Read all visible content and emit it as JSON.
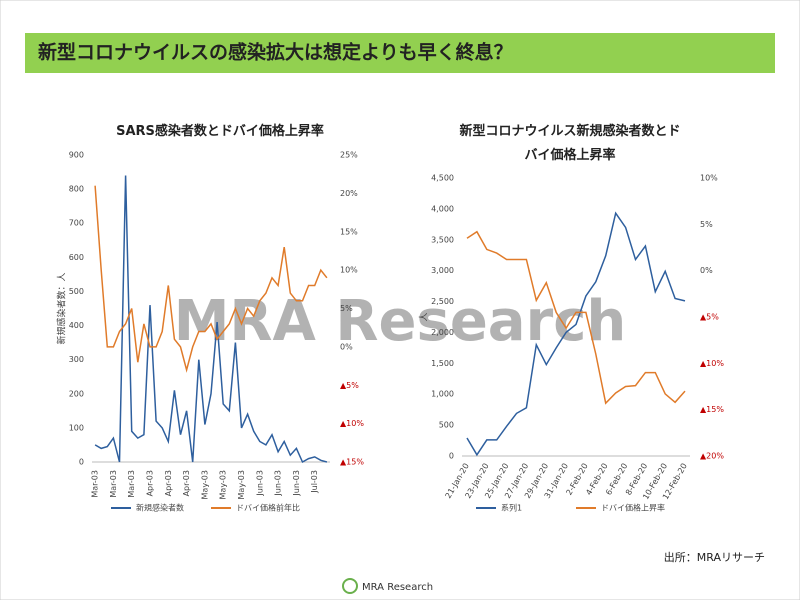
{
  "header": {
    "title": "新型コロナウイルスの感染拡大は想定よりも早く終息？"
  },
  "watermark": "MRA Research",
  "source": "出所：MRAリサーチ",
  "footer": "MRA Research",
  "chart_data": [
    {
      "type": "line",
      "title": "SARS感染者数とドバイ価格上昇率",
      "y_label": "新規感染者数：人",
      "categories": [
        "Mar-03",
        null,
        null,
        "Mar-03",
        null,
        null,
        "Mar-03",
        null,
        null,
        "Apr-03",
        null,
        null,
        "Apr-03",
        null,
        null,
        "Apr-03",
        null,
        null,
        "May-03",
        null,
        null,
        "May-03",
        null,
        null,
        "May-03",
        null,
        null,
        "Jun-03",
        null,
        null,
        "Jun-03",
        null,
        null,
        "Jun-03",
        null,
        null,
        "Jul-03",
        null,
        null
      ],
      "series": [
        {
          "name": "新規感染者数",
          "color": "#2e5f9e",
          "values": [
            50,
            40,
            45,
            70,
            0,
            840,
            90,
            70,
            80,
            460,
            120,
            100,
            60,
            210,
            80,
            150,
            0,
            300,
            110,
            200,
            410,
            170,
            150,
            350,
            100,
            140,
            90,
            60,
            50,
            80,
            30,
            60,
            20,
            40,
            0,
            10,
            15,
            5,
            0
          ]
        },
        {
          "name": "ドバイ価格前年比",
          "color": "#e07b2a",
          "axis": "y2",
          "values": [
            21,
            10,
            0,
            0,
            2,
            3,
            5,
            -2,
            3,
            0,
            0,
            2,
            8,
            1,
            0,
            -3,
            0,
            2,
            2,
            3,
            1,
            2,
            3,
            5,
            3,
            5,
            4,
            6,
            7,
            9,
            8,
            13,
            7,
            6,
            6,
            8,
            8,
            10,
            9
          ]
        }
      ],
      "ylim": [
        0,
        900
      ],
      "yticks": [
        0,
        100,
        200,
        300,
        400,
        500,
        600,
        700,
        800,
        900
      ],
      "y2lim": [
        -15,
        25
      ],
      "y2ticks": [
        {
          "value": -15,
          "label": "▲15%"
        },
        {
          "value": -10,
          "label": "▲10%"
        },
        {
          "value": -5,
          "label": "▲5%"
        },
        {
          "value": 0,
          "label": "0%"
        },
        {
          "value": 5,
          "label": "5%"
        },
        {
          "value": 10,
          "label": "10%"
        },
        {
          "value": 15,
          "label": "15%"
        },
        {
          "value": 20,
          "label": "20%"
        },
        {
          "value": 25,
          "label": "25%"
        }
      ],
      "legend": "bottom"
    },
    {
      "type": "line",
      "title": "新型コロナウイルス新規感染者数とドバイ価格上昇率",
      "y_label": "人",
      "categories": [
        "21-Jan-20",
        null,
        "23-Jan-20",
        null,
        "25-Jan-20",
        null,
        "27-Jan-20",
        null,
        "29-Jan-20",
        null,
        "31-Jan-20",
        null,
        "2-Feb-20",
        null,
        "4-Feb-20",
        null,
        "6-Feb-20",
        null,
        "8-Feb-20",
        null,
        "10-Feb-20",
        null,
        "12-Feb-20"
      ],
      "series": [
        {
          "name": "系列1",
          "color": "#2e5f9e",
          "values": [
            291,
            20,
            260,
            260,
            480,
            690,
            780,
            1800,
            1480,
            1750,
            2000,
            2130,
            2590,
            2820,
            3240,
            3930,
            3700,
            3180,
            3400,
            2660,
            2990,
            2550,
            2510
          ]
        },
        {
          "name": "ドバイ価格上昇率",
          "color": "#e07b2a",
          "axis": "y2",
          "values": [
            3.5,
            4.2,
            2.3,
            1.9,
            1.2,
            1.2,
            1.2,
            -3.2,
            -1.3,
            -4.5,
            -6.2,
            -4.5,
            -4.5,
            -9,
            -14.3,
            -13.2,
            -12.5,
            -12.4,
            -11,
            -11,
            -13.3,
            -14.2,
            -13
          ]
        }
      ],
      "ylim": [
        0,
        4500
      ],
      "yticks": [
        0,
        {
          "value": 500,
          "label": "500"
        },
        {
          "value": 1000,
          "label": "1,000"
        },
        {
          "value": 1500,
          "label": "1,500"
        },
        {
          "value": 2000,
          "label": "2,000"
        },
        {
          "value": 2500,
          "label": "2,500"
        },
        {
          "value": 3000,
          "label": "3,000"
        },
        {
          "value": 3500,
          "label": "3,500"
        },
        {
          "value": 4000,
          "label": "4,000"
        },
        {
          "value": 4500,
          "label": "4,500"
        }
      ],
      "y2lim": [
        -20,
        10
      ],
      "y2ticks": [
        {
          "value": -20,
          "label": "▲20%"
        },
        {
          "value": -15,
          "label": "▲15%"
        },
        {
          "value": -10,
          "label": "▲10%"
        },
        {
          "value": -5,
          "label": "▲5%"
        },
        {
          "value": 0,
          "label": "0%"
        },
        {
          "value": 5,
          "label": "5%"
        },
        {
          "value": 10,
          "label": "10%"
        }
      ],
      "legend": "bottom"
    }
  ]
}
